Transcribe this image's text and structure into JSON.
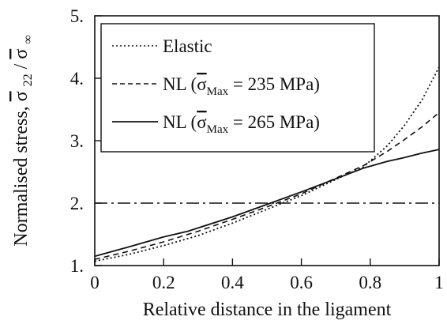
{
  "chart_data": {
    "type": "line",
    "xlabel": "Relative distance in the ligament",
    "ylabel_text": "Normalised stress, ",
    "ylabel_symbol": "σ",
    "ylabel_sub": "22",
    "ylabel_mid": "/",
    "ylabel_inf": "∞",
    "xlim": [
      0,
      1
    ],
    "ylim": [
      1,
      5
    ],
    "x_ticks": [
      {
        "value": 0,
        "label": "0"
      },
      {
        "value": 0.2,
        "label": "0.2"
      },
      {
        "value": 0.4,
        "label": "0.4"
      },
      {
        "value": 0.6,
        "label": "0.6"
      },
      {
        "value": 0.8,
        "label": "0.8"
      },
      {
        "value": 1,
        "label": "1"
      }
    ],
    "y_ticks": [
      {
        "value": 1,
        "label": "1."
      },
      {
        "value": 2,
        "label": "2."
      },
      {
        "value": 3,
        "label": "3."
      },
      {
        "value": 4,
        "label": "4."
      },
      {
        "value": 5,
        "label": "5."
      }
    ],
    "grid": false,
    "legend_position": "top-left",
    "reference_line": {
      "y": 2.0,
      "style": "dash-dot"
    },
    "series": [
      {
        "legend_prefix": "Elastic",
        "legend_symbol": "",
        "legend_sub": "",
        "legend_suffix": "",
        "style": "dotted",
        "x": [
          0,
          0.1,
          0.2,
          0.3,
          0.4,
          0.5,
          0.6,
          0.7,
          0.78,
          0.85,
          0.9,
          0.95,
          1.0
        ],
        "y": [
          1.07,
          1.18,
          1.32,
          1.48,
          1.68,
          1.9,
          2.12,
          2.38,
          2.58,
          2.92,
          3.25,
          3.65,
          4.18
        ]
      },
      {
        "legend_prefix": "NL (",
        "legend_symbol": "σ",
        "legend_sub": "Max",
        "legend_suffix": " = 235 MPa)",
        "style": "dashed",
        "x": [
          0,
          0.1,
          0.2,
          0.3,
          0.4,
          0.5,
          0.6,
          0.7,
          0.78,
          0.85,
          0.9,
          0.95,
          1.0
        ],
        "y": [
          1.1,
          1.23,
          1.38,
          1.55,
          1.74,
          1.94,
          2.15,
          2.4,
          2.6,
          2.83,
          3.02,
          3.22,
          3.45
        ]
      },
      {
        "legend_prefix": "NL (",
        "legend_symbol": "σ",
        "legend_sub": "Max",
        "legend_suffix": " = 265 MPa)",
        "style": "solid",
        "x": [
          0,
          0.1,
          0.2,
          0.27,
          0.4,
          0.5,
          0.6,
          0.7,
          0.78,
          0.85,
          0.9,
          0.95,
          1.0
        ],
        "y": [
          1.15,
          1.3,
          1.46,
          1.55,
          1.78,
          1.98,
          2.18,
          2.39,
          2.56,
          2.67,
          2.73,
          2.8,
          2.86
        ]
      }
    ]
  }
}
